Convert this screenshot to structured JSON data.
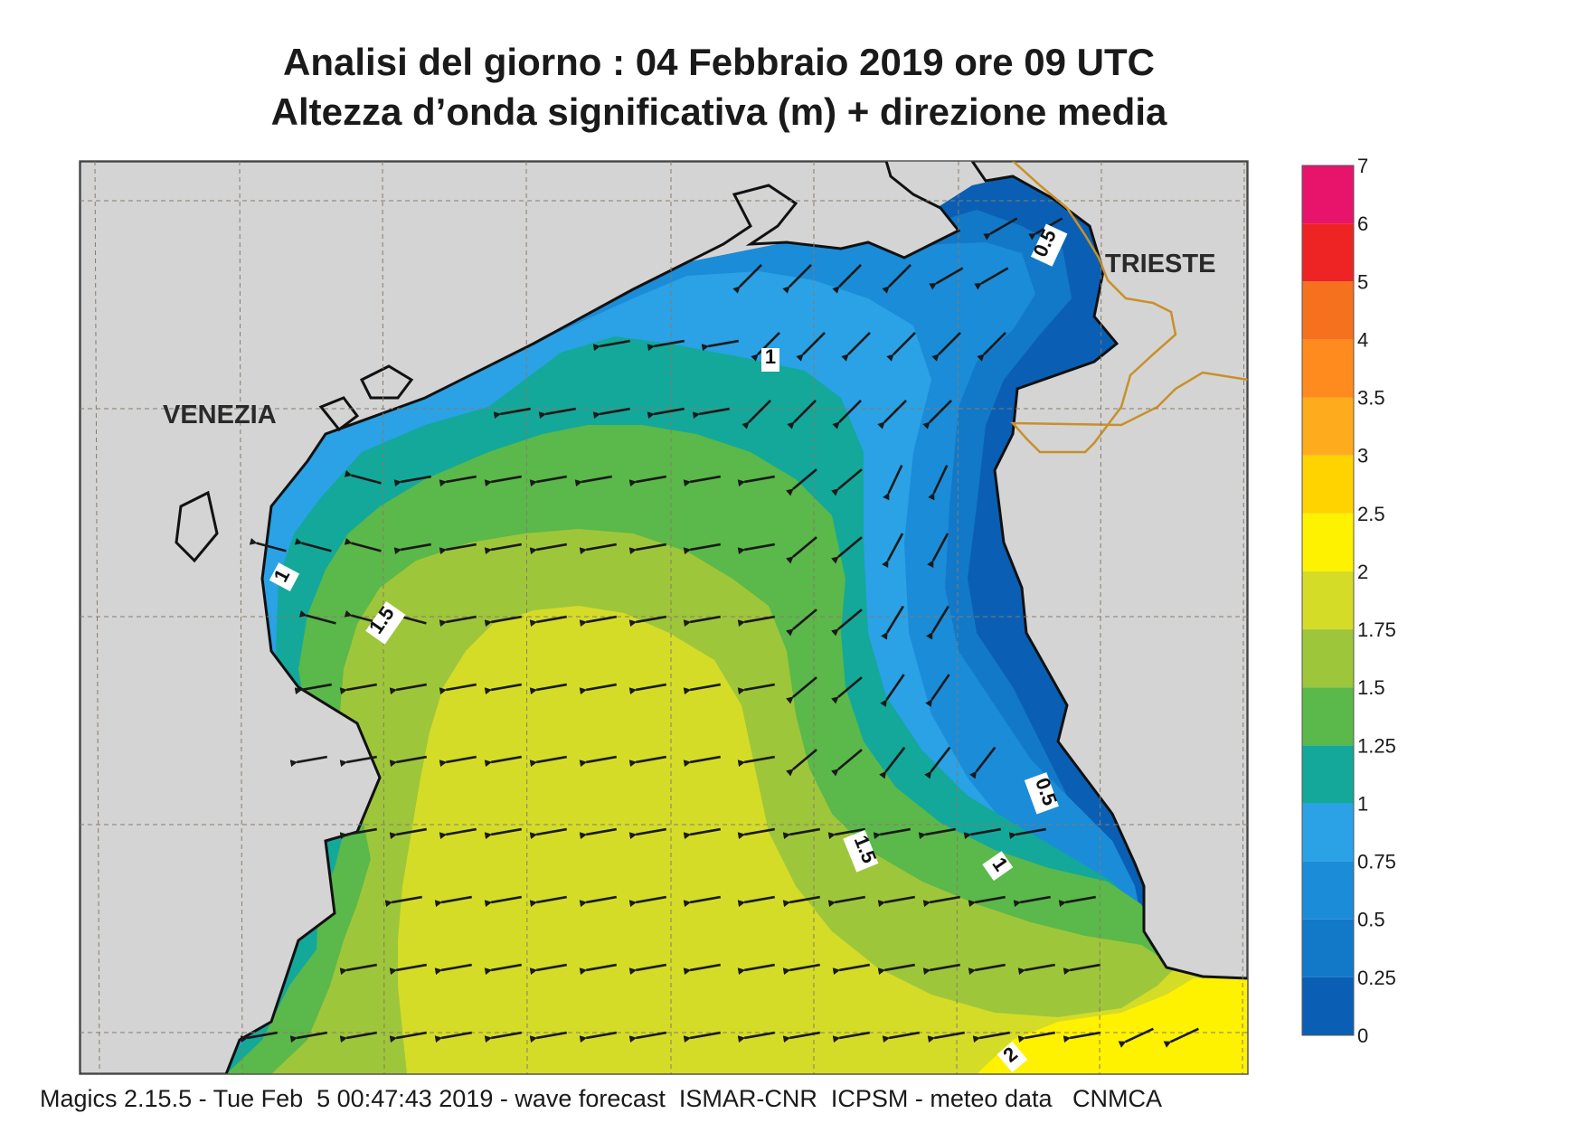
{
  "title": {
    "line1": "Analisi del giorno :  04  Febbraio 2019   ore 09 UTC",
    "line2": "Altezza d’onda significativa (m) + direzione media"
  },
  "footer": "Magics 2.15.5 - Tue Feb  5 00:47:43 2019 - wave forecast  ISMAR-CNR  ICPSM - meteo data   CNMCA",
  "map": {
    "place_labels": [
      "VENEZIA",
      "TRIESTE"
    ],
    "contour_labels": [
      "0.5",
      "1",
      "1",
      "1.5",
      "1.5",
      "0.5",
      "1",
      "2"
    ],
    "land_color": "#d4d4d4",
    "border_color": "#c8902a"
  },
  "legend": {
    "levels": [
      "0",
      "0.25",
      "0.5",
      "0.75",
      "1",
      "1.25",
      "1.5",
      "1.75",
      "2",
      "2.5",
      "3",
      "3.5",
      "4",
      "5",
      "6",
      "7"
    ],
    "colors": [
      "#0a5fb4",
      "#1279c8",
      "#1b8cd8",
      "#2aa2e5",
      "#13a89a",
      "#5bb84a",
      "#9ec63a",
      "#d4dc28",
      "#fff200",
      "#ffd300",
      "#ffab1e",
      "#ff8a1e",
      "#f5711e",
      "#ee2424",
      "#e8136a"
    ]
  }
}
